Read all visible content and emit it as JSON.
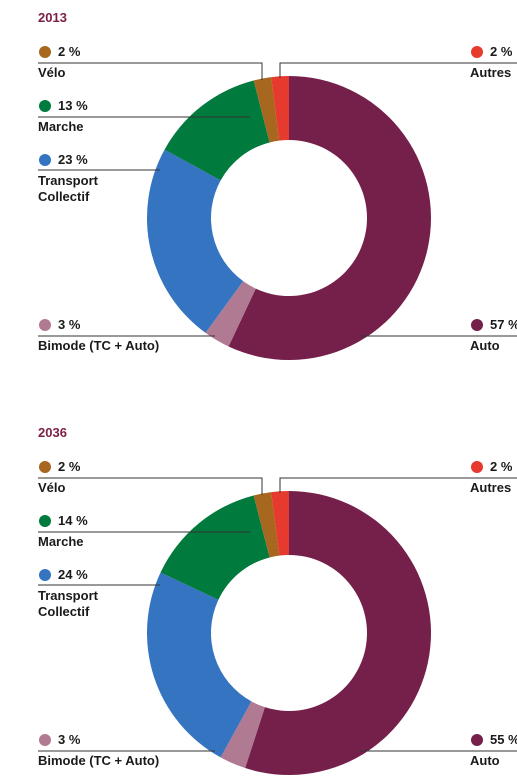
{
  "chart_data": [
    {
      "type": "donut",
      "title": "2013",
      "categories": [
        "Auto",
        "Bimode (TC + Auto)",
        "Transport Collectif",
        "Marche",
        "Vélo",
        "Autres"
      ],
      "values": [
        57,
        3,
        23,
        13,
        2,
        2
      ],
      "value_labels": [
        "57 %",
        "3 %",
        "23 %",
        "13 %",
        "2 %",
        "2 %"
      ],
      "colors": [
        "#75204a",
        "#b07a93",
        "#3474c0",
        "#007a3d",
        "#a8671e",
        "#e63a2e"
      ]
    },
    {
      "type": "donut",
      "title": "2036",
      "categories": [
        "Auto",
        "Bimode (TC + Auto)",
        "Transport Collectif",
        "Marche",
        "Vélo",
        "Autres"
      ],
      "values": [
        55,
        3,
        24,
        14,
        2,
        2
      ],
      "value_labels": [
        "55 %",
        "3 %",
        "24 %",
        "14 %",
        "2 %",
        "2 %"
      ],
      "colors": [
        "#75204a",
        "#b07a93",
        "#3474c0",
        "#007a3d",
        "#a8671e",
        "#e63a2e"
      ]
    }
  ]
}
